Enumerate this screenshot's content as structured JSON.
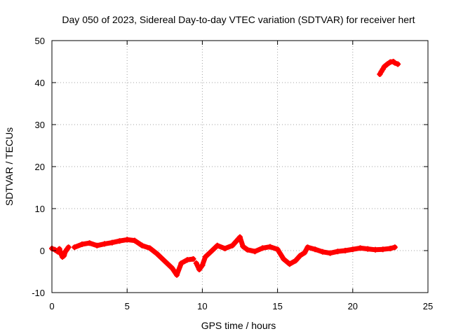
{
  "chart_data": {
    "type": "scatter",
    "title": "Day 050 of 2023, Sidereal Day-to-day VTEC variation (SDTVAR) for receiver hert",
    "xlabel": "GPS time / hours",
    "ylabel": "SDTVAR / TECUs",
    "xlim": [
      0,
      25
    ],
    "ylim": [
      -10,
      50
    ],
    "x_ticks": [
      0,
      5,
      10,
      15,
      20,
      25
    ],
    "y_ticks": [
      -10,
      0,
      10,
      20,
      30,
      40,
      50
    ],
    "grid": true,
    "series": [
      {
        "name": "SDTVAR",
        "color": "#ff0000",
        "segments": [
          {
            "x": [
              0.0,
              0.2,
              0.4,
              0.5,
              0.6,
              0.7,
              0.8,
              0.9,
              1.0,
              1.1
            ],
            "y": [
              0.5,
              0.2,
              -0.3,
              0.4,
              -0.8,
              -1.5,
              -1.2,
              -0.2,
              0.3,
              0.8
            ]
          },
          {
            "x": [
              1.5,
              2.0,
              2.5,
              3.0,
              3.5,
              4.0,
              4.5,
              5.0,
              5.5,
              6.0,
              6.5,
              7.0,
              7.5,
              8.0,
              8.3,
              8.6,
              9.0,
              9.4
            ],
            "y": [
              0.8,
              1.5,
              1.8,
              1.2,
              1.6,
              1.9,
              2.3,
              2.6,
              2.4,
              1.2,
              0.6,
              -0.8,
              -2.5,
              -4.2,
              -5.8,
              -3.0,
              -2.2,
              -2.0
            ]
          },
          {
            "x": [
              9.6,
              9.8,
              10.0,
              10.2,
              10.5,
              11.0,
              11.5,
              12.0,
              12.5,
              12.7,
              13.0,
              13.5,
              14.0,
              14.5,
              15.0,
              15.4,
              15.8,
              16.2,
              16.5,
              16.8,
              17.0,
              17.5,
              18.0,
              18.5,
              19.0,
              19.5,
              20.0,
              20.5,
              21.0,
              21.5,
              22.0,
              22.5,
              22.8
            ],
            "y": [
              -3.0,
              -4.5,
              -3.5,
              -1.5,
              -0.5,
              1.2,
              0.5,
              1.2,
              3.2,
              1.0,
              0.2,
              -0.2,
              0.6,
              0.9,
              0.3,
              -2.0,
              -3.2,
              -2.4,
              -1.2,
              -0.5,
              0.8,
              0.3,
              -0.3,
              -0.6,
              -0.2,
              0.0,
              0.3,
              0.6,
              0.4,
              0.2,
              0.3,
              0.5,
              0.8
            ]
          },
          {
            "x": [
              21.8,
              21.9,
              22.0,
              22.1,
              22.3,
              22.5,
              22.7,
              22.8,
              23.0
            ],
            "y": [
              42.0,
              42.6,
              43.2,
              43.8,
              44.4,
              44.9,
              45.0,
              44.7,
              44.4
            ]
          }
        ]
      }
    ]
  }
}
